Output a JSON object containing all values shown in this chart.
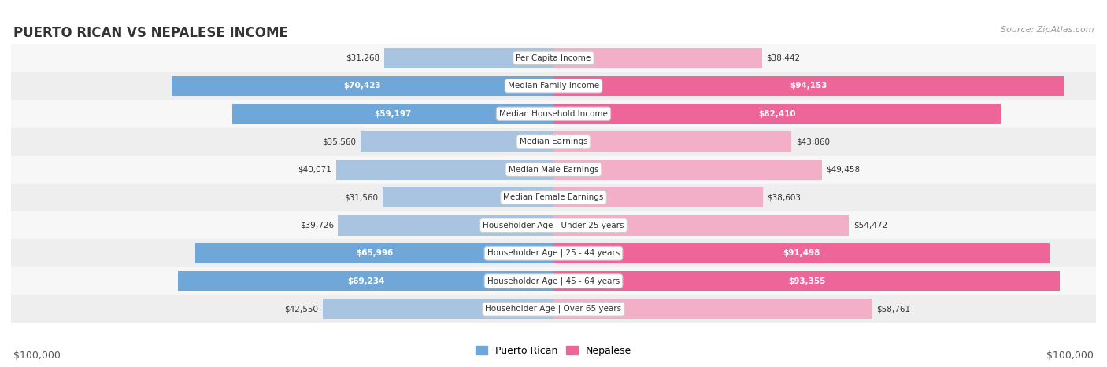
{
  "title": "PUERTO RICAN VS NEPALESE INCOME",
  "source": "Source: ZipAtlas.com",
  "categories": [
    "Per Capita Income",
    "Median Family Income",
    "Median Household Income",
    "Median Earnings",
    "Median Male Earnings",
    "Median Female Earnings",
    "Householder Age | Under 25 years",
    "Householder Age | 25 - 44 years",
    "Householder Age | 45 - 64 years",
    "Householder Age | Over 65 years"
  ],
  "puerto_rican": [
    31268,
    70423,
    59197,
    35560,
    40071,
    31560,
    39726,
    65996,
    69234,
    42550
  ],
  "nepalese": [
    38442,
    94153,
    82410,
    43860,
    49458,
    38603,
    54472,
    91498,
    93355,
    58761
  ],
  "pr_dark_indices": [
    1,
    2,
    7,
    8
  ],
  "np_dark_indices": [
    1,
    2,
    7,
    8
  ],
  "max_val": 100000,
  "pr_color_light": "#a8c4e0",
  "pr_color_dark": "#6fa8d8",
  "np_color_light": "#f4afc8",
  "np_color_dark": "#ee6699",
  "row_colors": [
    "#f7f7f7",
    "#eeeeee"
  ],
  "x_label_left": "$100,000",
  "x_label_right": "$100,000",
  "pr_legend": "Puerto Rican",
  "np_legend": "Nepalese",
  "bar_height": 0.72
}
